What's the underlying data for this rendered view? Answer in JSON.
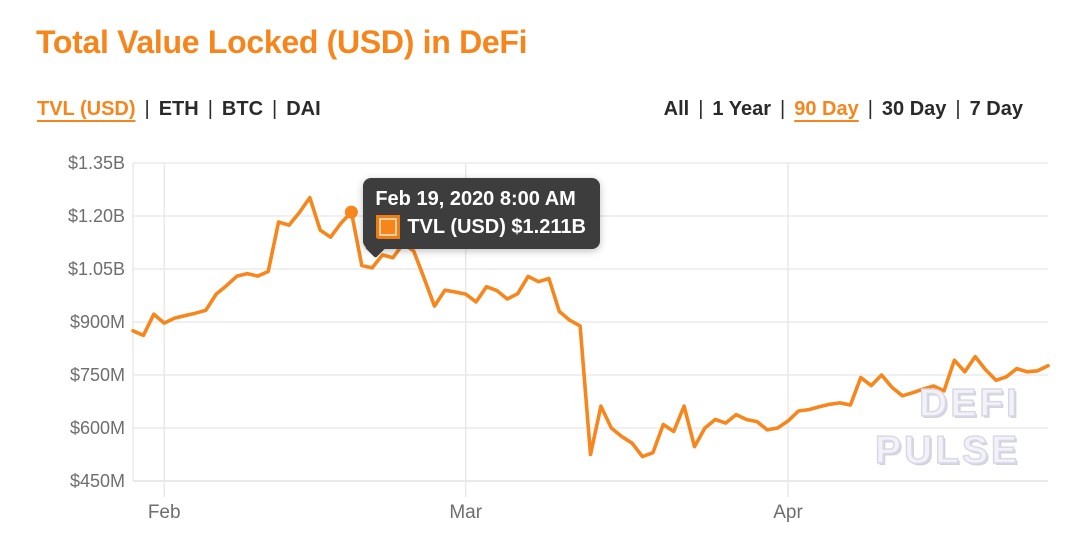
{
  "header": {
    "title": "Total Value Locked (USD) in DeFi"
  },
  "nav_left": {
    "separator": "|",
    "items": [
      {
        "label": "TVL (USD)",
        "active": true
      },
      {
        "label": "ETH",
        "active": false
      },
      {
        "label": "BTC",
        "active": false
      },
      {
        "label": "DAI",
        "active": false
      }
    ]
  },
  "nav_right": {
    "separator": "|",
    "items": [
      {
        "label": "All",
        "active": false
      },
      {
        "label": "1 Year",
        "active": false
      },
      {
        "label": "90 Day",
        "active": true
      },
      {
        "label": "30 Day",
        "active": false
      },
      {
        "label": "7 Day",
        "active": false
      }
    ]
  },
  "tooltip": {
    "date": "Feb 19, 2020 8:00 AM",
    "series_label": "TVL (USD)",
    "value": "$1.211B",
    "swatch_color": "#f6851b"
  },
  "watermark": {
    "line1": "DEFI",
    "line2": "PULSE"
  },
  "colors": {
    "accent_orange": "#f6851b",
    "line_orange": "#f7861d",
    "tooltip_bg": "#3d3d3d",
    "gridline": "#e6e6e6",
    "baseline": "#dcdcdc",
    "axis_text": "#6e6e6e",
    "nav_text": "#2a2a2a",
    "watermark": "#dcdce8"
  },
  "chart_data": {
    "type": "line",
    "title": "Total Value Locked (USD) in DeFi",
    "xlabel": "",
    "ylabel": "Total Value Locked (USD)",
    "x_start": "2020-01-29",
    "x_end": "2020-04-26",
    "interval": "1 day",
    "grid": true,
    "legend_position": "none",
    "ylim_musd": [
      450,
      1350
    ],
    "y_tick_values_musd": [
      1350,
      1200,
      1050,
      900,
      750,
      600,
      450
    ],
    "y_tick_labels": [
      "$1.35B",
      "$1.20B",
      "$1.05B",
      "$900M",
      "$750M",
      "$600M",
      "$450M"
    ],
    "x_tick_labels": [
      "Feb",
      "Mar",
      "Apr"
    ],
    "x_tick_indices": [
      3,
      32,
      63
    ],
    "series": [
      {
        "name": "TVL (USD)",
        "color": "#f7861d",
        "values_musd": [
          875,
          862,
          922,
          897,
          911,
          918,
          925,
          933,
          979,
          1003,
          1030,
          1037,
          1030,
          1043,
          1183,
          1174,
          1210,
          1252,
          1160,
          1140,
          1180,
          1211,
          1060,
          1053,
          1090,
          1082,
          1122,
          1101,
          1024,
          945,
          990,
          985,
          979,
          957,
          1000,
          989,
          965,
          980,
          1029,
          1014,
          1023,
          930,
          905,
          889,
          525,
          662,
          600,
          576,
          557,
          519,
          530,
          610,
          590,
          662,
          547,
          600,
          624,
          614,
          638,
          624,
          618,
          595,
          600,
          620,
          648,
          652,
          660,
          667,
          671,
          665,
          743,
          720,
          750,
          715,
          691,
          700,
          710,
          719,
          705,
          792,
          759,
          802,
          765,
          735,
          745,
          768,
          759,
          762,
          776
        ]
      }
    ],
    "highlight": {
      "index": 21,
      "date": "Feb 19, 2020 8:00 AM",
      "value_musd": 1211,
      "display_value": "$1.211B"
    }
  }
}
